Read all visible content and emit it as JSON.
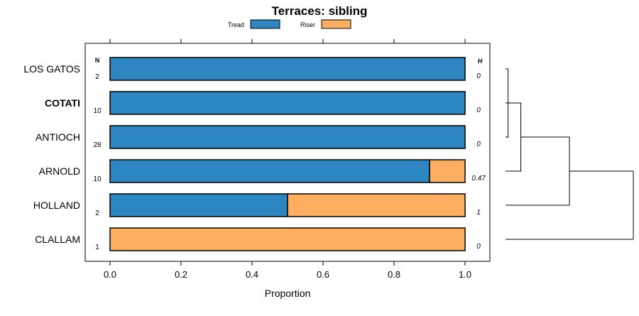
{
  "chart_data": {
    "type": "bar",
    "subtype": "stacked-horizontal-proportion",
    "title": "Terraces: sibling",
    "xlabel": "Proportion",
    "ylabel": "",
    "xlim": [
      -0.07,
      1.07
    ],
    "x_ticks": [
      0,
      0.2,
      0.4,
      0.6,
      0.8,
      1
    ],
    "x_tick_labels": [
      "0.0",
      "0.2",
      "0.4",
      "0.6",
      "0.8",
      "1.0"
    ],
    "legend_placement": "top-center",
    "n_header": "N",
    "h_header": "H",
    "categories": [
      "LOS GATOS",
      "COTATI",
      "ANTIOCH",
      "ARNOLD",
      "HOLLAND",
      "CLALLAM"
    ],
    "bold_categories": [
      "COTATI"
    ],
    "n_values": [
      "2",
      "10",
      "28",
      "10",
      "2",
      "1"
    ],
    "h_values": [
      "0",
      "0",
      "0",
      "0.47",
      "1",
      "0"
    ],
    "series": [
      {
        "name": "Tread",
        "color": "#2e86c1",
        "values": [
          1.0,
          1.0,
          1.0,
          0.9,
          0.5,
          0.0
        ]
      },
      {
        "name": "Riser",
        "color": "#fdae61",
        "values": [
          0.0,
          0.0,
          0.0,
          0.1,
          0.5,
          1.0
        ]
      }
    ],
    "dendrogram": {
      "description": "hierarchical clustering tree of categories",
      "merges": [
        {
          "left": "LOS GATOS",
          "right": "ANTIOCH",
          "height": 0.02
        },
        {
          "left": "COTATI",
          "right": "M1",
          "height": 0.01
        },
        {
          "left": "M2",
          "right": "ARNOLD",
          "height": 0.12
        },
        {
          "left": "M3",
          "right": "HOLLAND",
          "height": 0.5
        },
        {
          "left": "M4",
          "right": "CLALLAM",
          "height": 1.0
        }
      ]
    }
  }
}
